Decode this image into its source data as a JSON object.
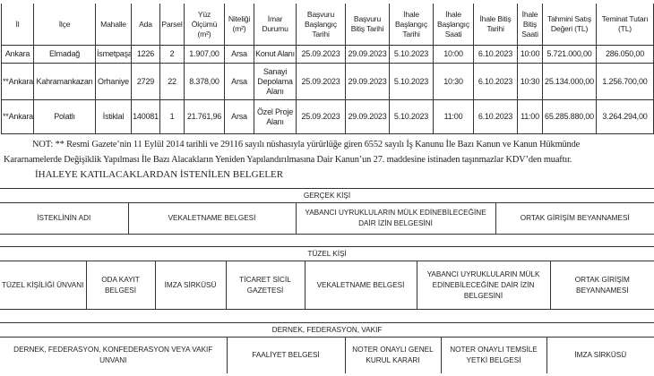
{
  "main_table": {
    "headers": [
      "İl",
      "İlçe",
      "Mahalle",
      "Ada",
      "Parsel",
      "Yüz Ölçümü (m²)",
      "Niteliği (m²)",
      "İmar Durumu",
      "Başvuru Başlangıç Tarihi",
      "Başvuru Bitiş Tarihi",
      "İhale Başlangıç Tarihi",
      "İhale Başlangıç Saati",
      "İhale Bitiş Tarihi",
      "İhale Bitiş Saati",
      "Tahmini Satış Değeri (TL)",
      "Teminat Tutarı (TL)"
    ],
    "rows": [
      [
        "Ankara",
        "Elmadağ",
        "İsmetpaşa",
        "1226",
        "2",
        "1.907,00",
        "Arsa",
        "Konut Alanı",
        "25.09.2023",
        "29.09.2023",
        "5.10.2023",
        "10:00",
        "6.10.2023",
        "10:00",
        "5.721.000,00",
        "286.050,00"
      ],
      [
        "**Ankara",
        "Kahramankazan",
        "Orhaniye",
        "2729",
        "22",
        "8.378,00",
        "Arsa",
        "Sanayi Depolama Alanı",
        "25.09.2023",
        "29.09.2023",
        "5.10.2023",
        "10:30",
        "6.10.2023",
        "10:30",
        "25.134.000,00",
        "1.256.700,00"
      ],
      [
        "**Ankara",
        "Polatlı",
        "İstiklal",
        "140081",
        "1",
        "21.761,96",
        "Arsa",
        "Özel Proje Alanı",
        "25.09.2023",
        "29.09.2023",
        "5.10.2023",
        "11:00",
        "6.10.2023",
        "11:00",
        "65.285.880,00",
        "3.264.294,00"
      ]
    ]
  },
  "note": {
    "line1": "NOT: ** Resmi Gazete’nin 11 Eylül 2014 tarihli ve 29116 sayılı nüshasıyla yürürlüğe giren 6552 sayılı İş Kanunu İle Bazı Kanun ve Kanun Hükmünde",
    "line2": "Kararnamelerde Değişiklik Yapılması İle Bazı Alacakların Yeniden Yapılandırılmasına Dair Kanun’un 27. maddesine istinaden taşınmazlar KDV’den muaftır."
  },
  "documents_heading": "İHALEYE KATILACAKLARDAN İSTENİLEN BELGELER",
  "gercek_kisi": {
    "title": "GERÇEK KİŞİ",
    "items": [
      "İSTEKLİNİN ADI",
      "VEKALETNAME BELGESİ",
      "YABANCI UYRUKLULARIN MÜLK EDİNEBİLECEĞİNE DAİR İZİN BELGESİNİ",
      "ORTAK GİRİŞİM BEYANNAMESİ"
    ]
  },
  "tuzel_kisi": {
    "title": "TÜZEL KİŞİ",
    "items": [
      "TÜZEL KİŞİLİĞİ ÜNVANI",
      "ODA KAYIT BELGESİ",
      "İMZA SİRKÜSÜ",
      "TİCARET SİCİL GAZETESİ",
      "VEKALETNAME BELGESİ",
      "YABANCI UYRUKLULARIN MÜLK EDİNEBİLECEĞİNE DAİR İZİN BELGESİNİ",
      "ORTAK GİRİŞİM BEYANNAMESİ"
    ]
  },
  "dernek": {
    "title": "DERNEK, FEDERASYON, VAKIF",
    "items": [
      "DERNEK, FEDERASYON, KONFEDERASYON VEYA VAKIF UNVANI",
      "FAALİYET BELGESİ",
      "NOTER ONAYLI GENEL KURUL KARARI",
      "NOTER ONAYLI TEMSİLE YETKİ BELGESİ",
      "İMZA SİRKÜSÜ"
    ]
  }
}
